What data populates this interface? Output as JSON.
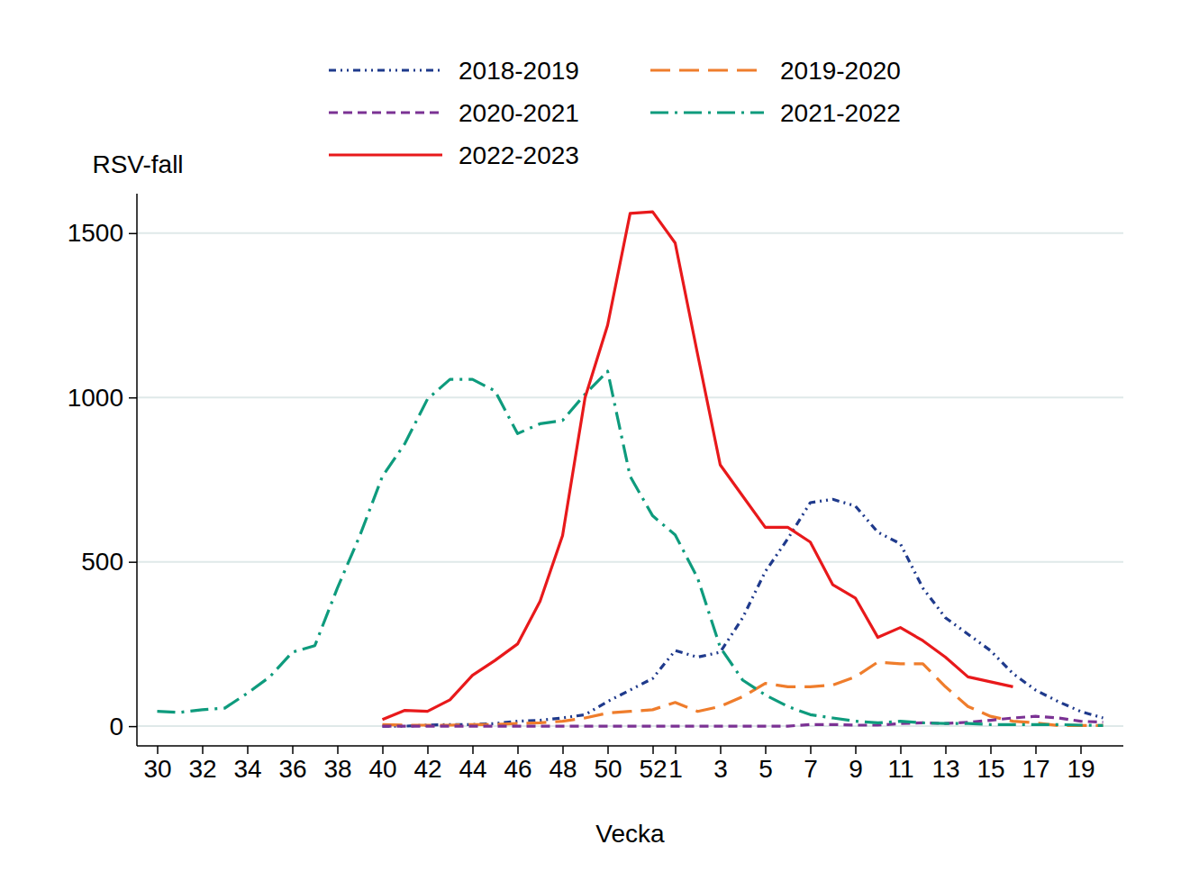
{
  "chart_data": {
    "type": "line",
    "y_label": "RSV-fall",
    "x_label": "Vecka",
    "categories": [
      30,
      null,
      32,
      null,
      34,
      null,
      36,
      null,
      38,
      null,
      40,
      null,
      42,
      null,
      44,
      null,
      46,
      null,
      48,
      null,
      50,
      null,
      52,
      1,
      null,
      3,
      null,
      5,
      null,
      7,
      null,
      9,
      null,
      11,
      null,
      13,
      null,
      15,
      null,
      17,
      null,
      19,
      null
    ],
    "ylim": [
      -60,
      1620
    ],
    "yticks": [
      0,
      500,
      1000,
      1500
    ],
    "grid": true,
    "legend": "top",
    "series": [
      {
        "name": "2018-2019",
        "color": "#1f3a8c",
        "line_style": "dash-dot-dot",
        "values": [
          null,
          null,
          null,
          null,
          null,
          null,
          null,
          null,
          null,
          null,
          0,
          0,
          3,
          5,
          5,
          8,
          15,
          18,
          25,
          35,
          75,
          110,
          145,
          230,
          210,
          225,
          330,
          470,
          570,
          680,
          690,
          670,
          590,
          555,
          420,
          330,
          280,
          230,
          160,
          110,
          75,
          45,
          25
        ]
      },
      {
        "name": "2019-2020",
        "color": "#ef7d2c",
        "line_style": "long-dashed",
        "values": [
          null,
          null,
          null,
          null,
          null,
          null,
          null,
          null,
          null,
          null,
          5,
          3,
          3,
          3,
          5,
          5,
          8,
          10,
          15,
          25,
          40,
          45,
          50,
          72,
          45,
          60,
          90,
          130,
          120,
          120,
          125,
          150,
          195,
          190,
          190,
          120,
          60,
          30,
          15,
          10,
          2,
          2,
          2
        ]
      },
      {
        "name": "2020-2021",
        "color": "#7b3294",
        "line_style": "dashed",
        "values": [
          null,
          null,
          null,
          null,
          null,
          null,
          null,
          null,
          null,
          null,
          0,
          0,
          0,
          0,
          0,
          0,
          0,
          0,
          0,
          0,
          0,
          0,
          0,
          0,
          0,
          0,
          0,
          0,
          0,
          5,
          5,
          3,
          3,
          8,
          10,
          8,
          12,
          18,
          25,
          30,
          25,
          15,
          12
        ]
      },
      {
        "name": "2021-2022",
        "color": "#0e9b7d",
        "line_style": "dash-dot",
        "values": [
          45,
          42,
          50,
          55,
          100,
          150,
          225,
          245,
          420,
          580,
          760,
          860,
          995,
          1055,
          1055,
          1020,
          890,
          920,
          930,
          1010,
          1080,
          760,
          640,
          582,
          450,
          240,
          140,
          95,
          60,
          35,
          25,
          15,
          10,
          15,
          10,
          8,
          8,
          5,
          5,
          5,
          5,
          3,
          2
        ]
      },
      {
        "name": "2022-2023",
        "color": "#e8191b",
        "line_style": "solid",
        "values": [
          null,
          null,
          null,
          null,
          null,
          null,
          null,
          null,
          null,
          null,
          20,
          48,
          45,
          80,
          155,
          200,
          250,
          380,
          580,
          1000,
          1220,
          1560,
          1565,
          1470,
          1130,
          795,
          700,
          605,
          605,
          560,
          430,
          390,
          270,
          300,
          260,
          210,
          150,
          135,
          120,
          null,
          null,
          null,
          null
        ]
      }
    ]
  }
}
